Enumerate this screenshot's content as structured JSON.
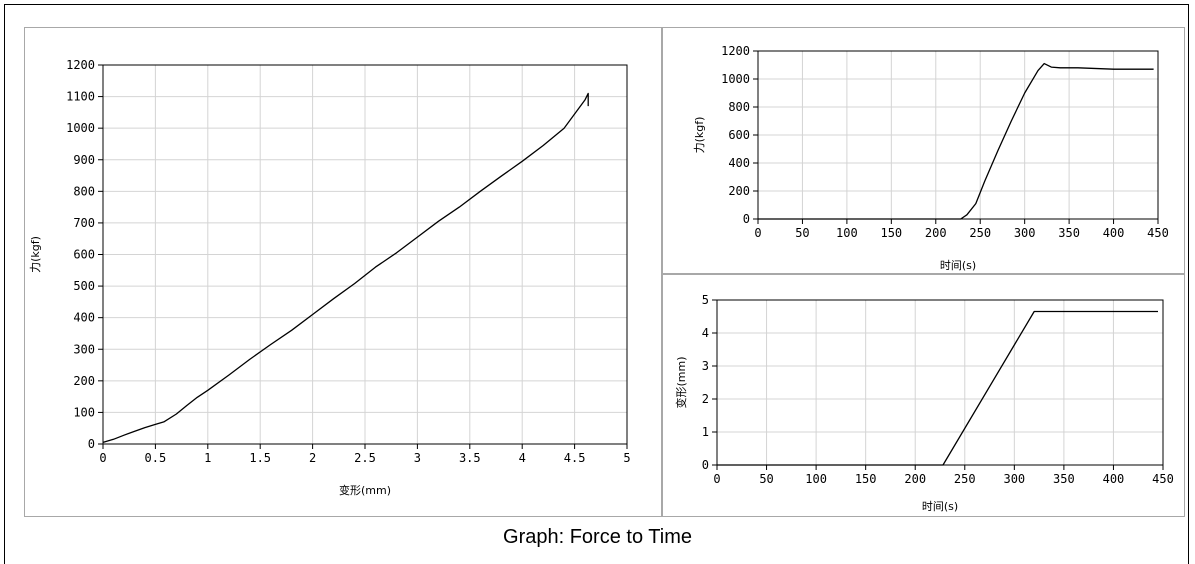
{
  "caption": "Graph: Force to Time",
  "chart_data": [
    {
      "type": "line",
      "xlabel": "变形(mm)",
      "ylabel": "力(kgf)",
      "xlim": [
        0,
        5
      ],
      "ylim": [
        0,
        1200
      ],
      "xticks": [
        "0",
        "0.5",
        "1",
        "1.5",
        "2",
        "2.5",
        "3",
        "3.5",
        "4",
        "4.5",
        "5"
      ],
      "yticks": [
        "0",
        "100",
        "200",
        "300",
        "400",
        "500",
        "600",
        "700",
        "800",
        "900",
        "1000",
        "1100",
        "1200"
      ],
      "grid": true,
      "series": [
        {
          "x": [
            0,
            0.1,
            0.2,
            0.3,
            0.4,
            0.5,
            0.58,
            0.7,
            0.8,
            0.9,
            1.0,
            1.2,
            1.4,
            1.6,
            1.8,
            2.0,
            2.2,
            2.4,
            2.6,
            2.8,
            3.0,
            3.2,
            3.4,
            3.6,
            3.8,
            4.0,
            4.2,
            4.4,
            4.6,
            4.63,
            4.63
          ],
          "y": [
            5,
            15,
            28,
            40,
            52,
            62,
            70,
            95,
            122,
            148,
            170,
            218,
            268,
            315,
            360,
            410,
            460,
            508,
            560,
            605,
            655,
            705,
            750,
            800,
            848,
            895,
            945,
            1000,
            1090,
            1110,
            1070
          ]
        }
      ]
    },
    {
      "type": "line",
      "xlabel": "时间(s)",
      "ylabel": "力(kgf)",
      "xlim": [
        0,
        450
      ],
      "ylim": [
        0,
        1200
      ],
      "xticks": [
        "0",
        "50",
        "100",
        "150",
        "200",
        "250",
        "300",
        "350",
        "400",
        "450"
      ],
      "yticks": [
        "0",
        "200",
        "400",
        "600",
        "800",
        "1000",
        "1200"
      ],
      "grid": true,
      "series": [
        {
          "x": [
            0,
            228,
            235,
            245,
            255,
            270,
            285,
            300,
            315,
            322,
            330,
            340,
            360,
            400,
            445
          ],
          "y": [
            0,
            0,
            30,
            110,
            270,
            490,
            700,
            900,
            1060,
            1110,
            1085,
            1080,
            1080,
            1070,
            1070
          ]
        }
      ]
    },
    {
      "type": "line",
      "xlabel": "时间(s)",
      "ylabel": "变形(mm)",
      "xlim": [
        0,
        450
      ],
      "ylim": [
        0,
        5
      ],
      "xticks": [
        "0",
        "50",
        "100",
        "150",
        "200",
        "250",
        "300",
        "350",
        "400",
        "450"
      ],
      "yticks": [
        "0",
        "1",
        "2",
        "3",
        "4",
        "5"
      ],
      "grid": true,
      "series": [
        {
          "x": [
            0,
            228,
            320,
            445
          ],
          "y": [
            0,
            0,
            4.65,
            4.65
          ]
        }
      ]
    }
  ]
}
